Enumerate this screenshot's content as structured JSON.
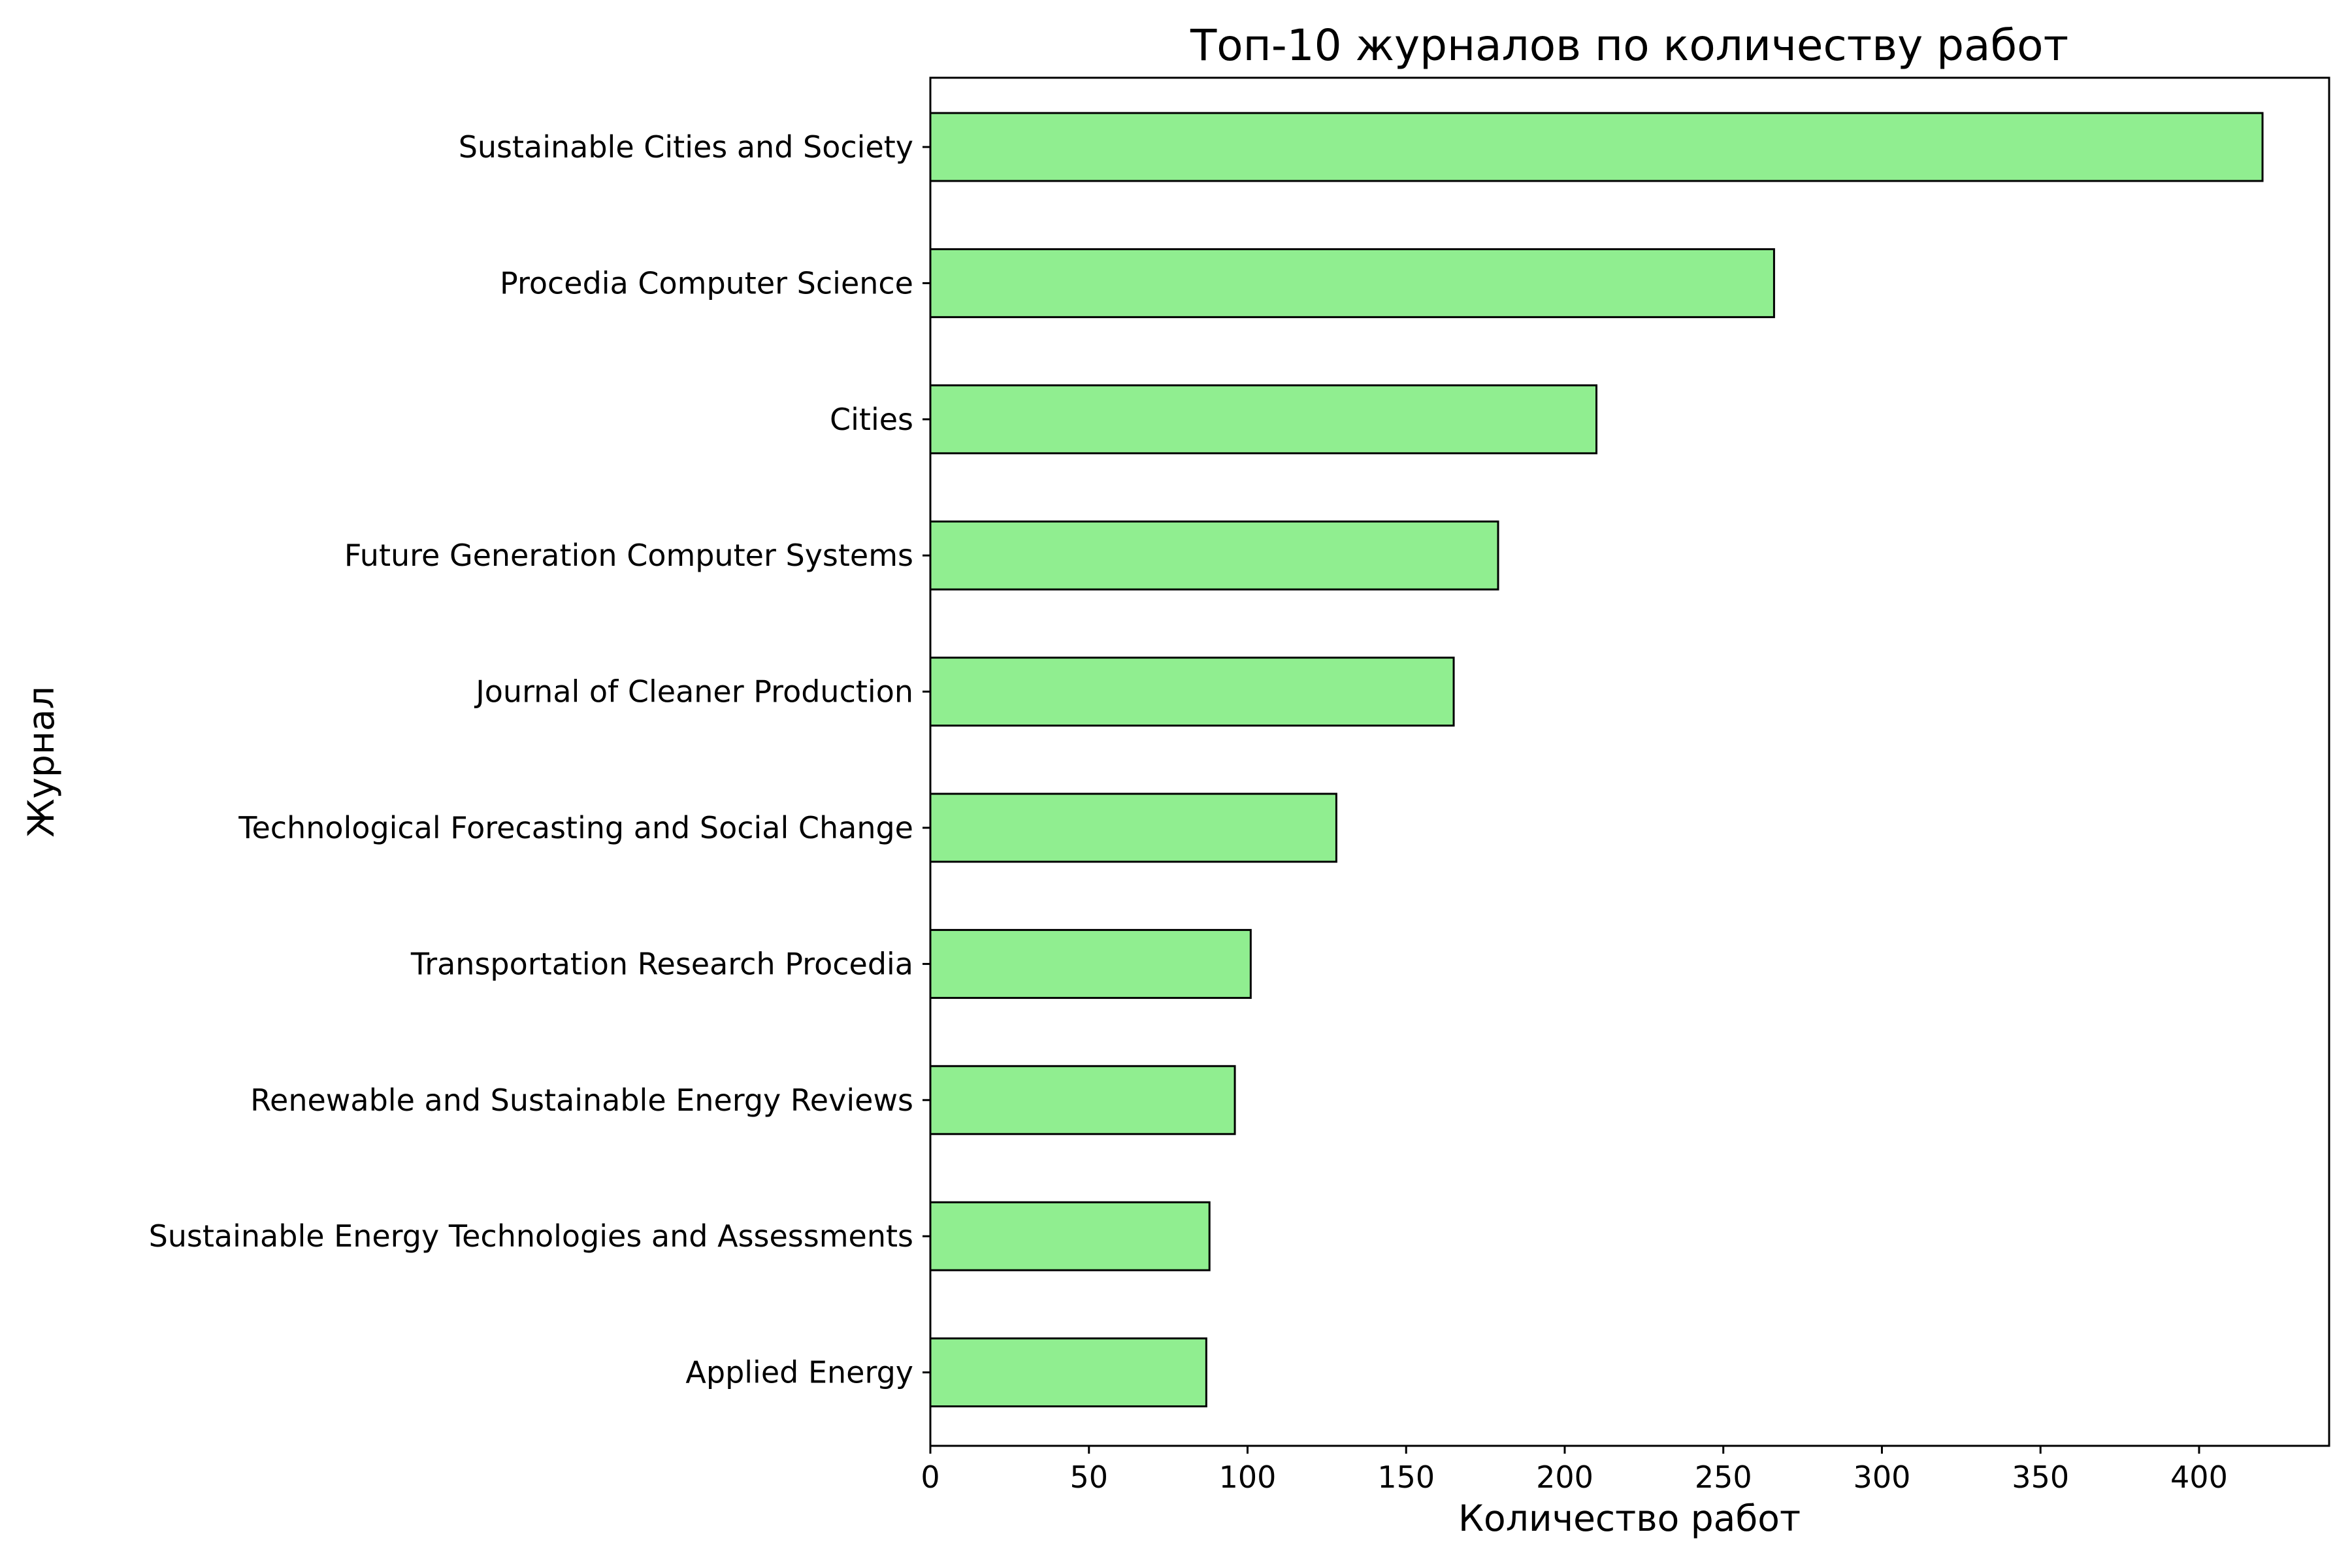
{
  "chart_data": {
    "type": "bar",
    "orientation": "horizontal",
    "title": "Топ-10 журналов по количеству работ",
    "xlabel": "Количество работ",
    "ylabel": "Журнал",
    "categories": [
      "Sustainable Cities and Society",
      "Procedia Computer Science",
      "Cities",
      "Future Generation Computer Systems",
      "Journal of Cleaner Production",
      "Technological Forecasting and Social Change",
      "Transportation Research Procedia",
      "Renewable and Sustainable Energy Reviews",
      "Sustainable Energy Technologies and Assessments",
      "Applied Energy"
    ],
    "values": [
      420,
      266,
      210,
      179,
      165,
      128,
      101,
      96,
      88,
      87
    ],
    "xticks": [
      0,
      50,
      100,
      150,
      200,
      250,
      300,
      350,
      400
    ],
    "xlim": [
      0,
      441
    ],
    "grid": false,
    "legend": "none",
    "colors": {
      "bar_fill": "#90ee90",
      "bar_edge": "#000000"
    }
  }
}
